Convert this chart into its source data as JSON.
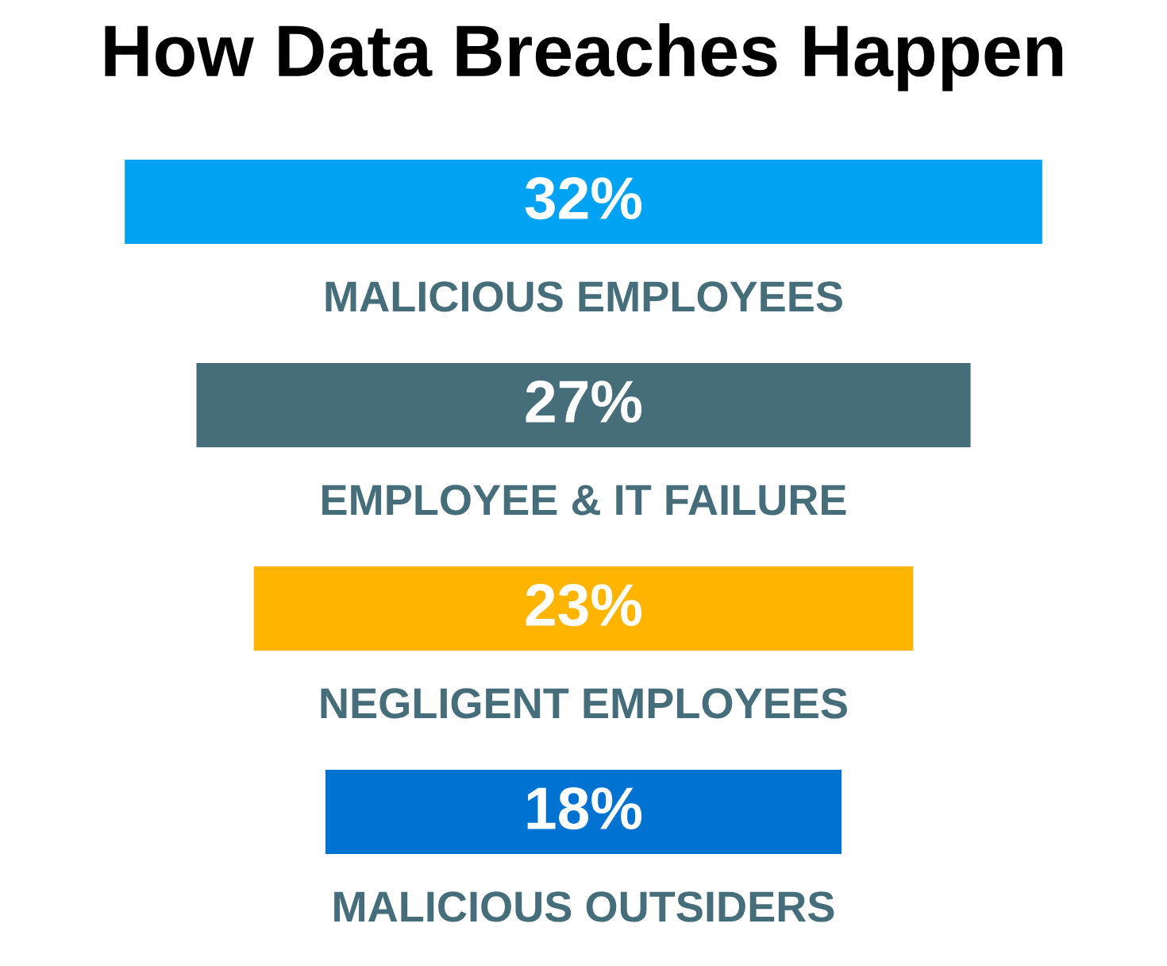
{
  "chart_data": {
    "type": "other",
    "title": "How Data Breaches Happen",
    "categories": [
      "MALICIOUS EMPLOYEES",
      "EMPLOYEE & IT FAILURE",
      "NEGLIGENT EMPLOYEES",
      "MALICIOUS OUTSIDERS"
    ],
    "values": [
      32,
      27,
      23,
      18
    ],
    "colors": [
      "#00a3f3",
      "#456e7a",
      "#ffb400",
      "#0073d2"
    ],
    "value_labels": [
      "32%",
      "27%",
      "23%",
      "18%"
    ]
  }
}
